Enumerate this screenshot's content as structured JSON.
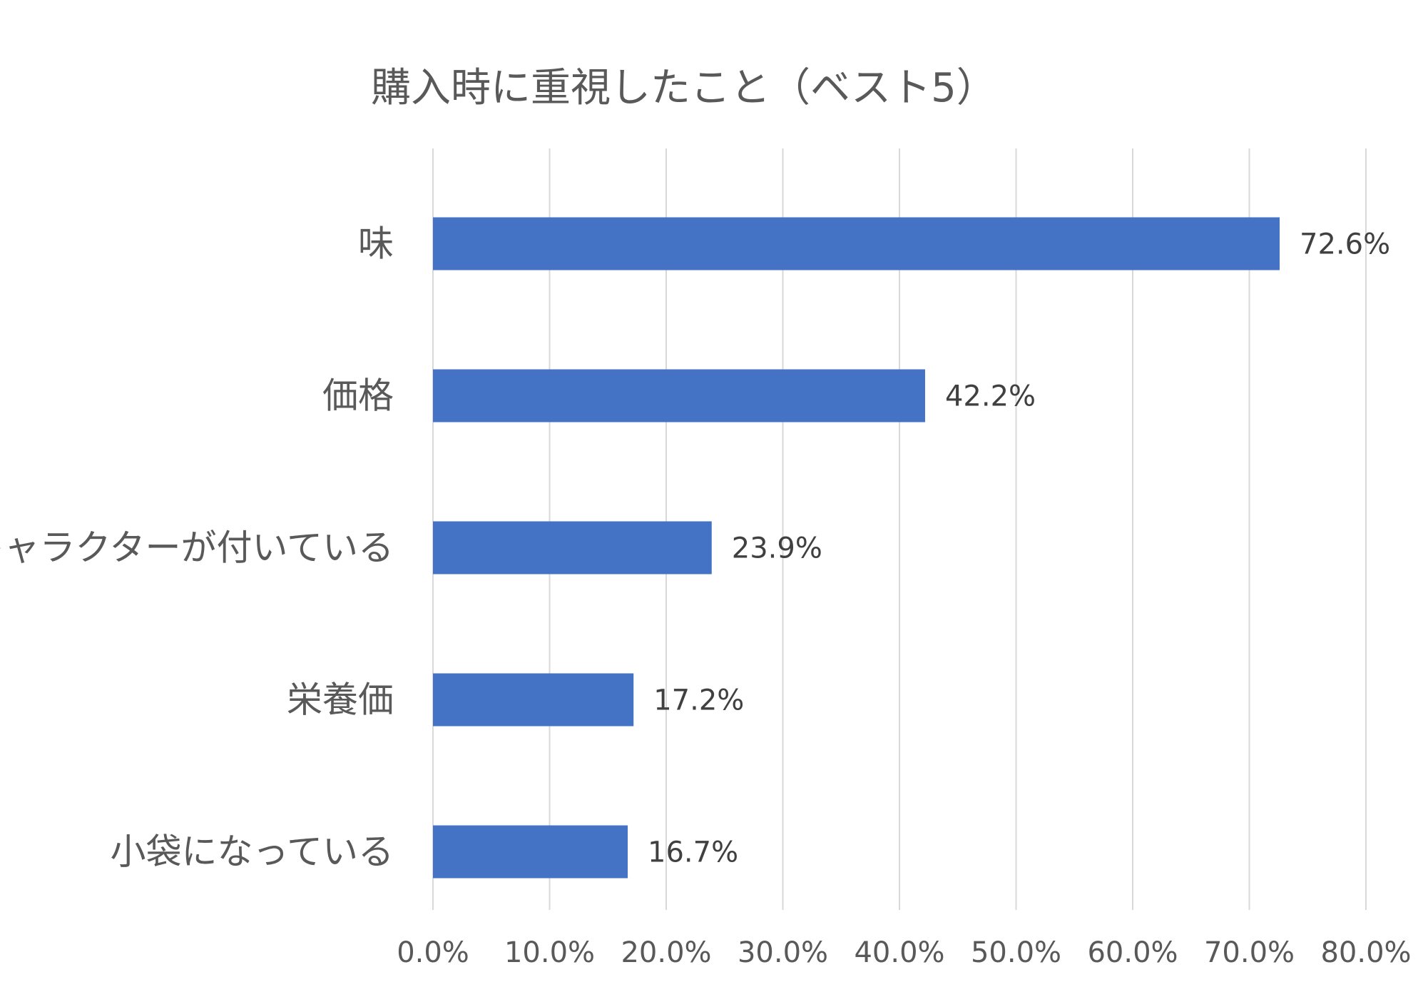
{
  "chart_data": {
    "type": "bar",
    "orientation": "horizontal",
    "title": "購入時に重視したこと（ベスト5）",
    "categories": [
      "味",
      "価格",
      "キャラクターが付いている",
      "栄養価",
      "小袋になっている"
    ],
    "values": [
      72.6,
      42.2,
      23.9,
      17.2,
      16.7
    ],
    "data_labels": [
      "72.6%",
      "42.2%",
      "23.9%",
      "17.2%",
      "16.7%"
    ],
    "xlim": [
      0,
      80
    ],
    "x_ticks": [
      0,
      10,
      20,
      30,
      40,
      50,
      60,
      70,
      80
    ],
    "x_tick_labels": [
      "0.0%",
      "10.0%",
      "20.0%",
      "30.0%",
      "40.0%",
      "50.0%",
      "60.0%",
      "70.0%",
      "80.0%"
    ],
    "xlabel": "",
    "ylabel": "",
    "grid": "vertical",
    "legend": "none",
    "colors": {
      "bar": "#4472C4",
      "grid": "#D9D9D9",
      "text": "#595959",
      "data_label": "#404040"
    }
  }
}
